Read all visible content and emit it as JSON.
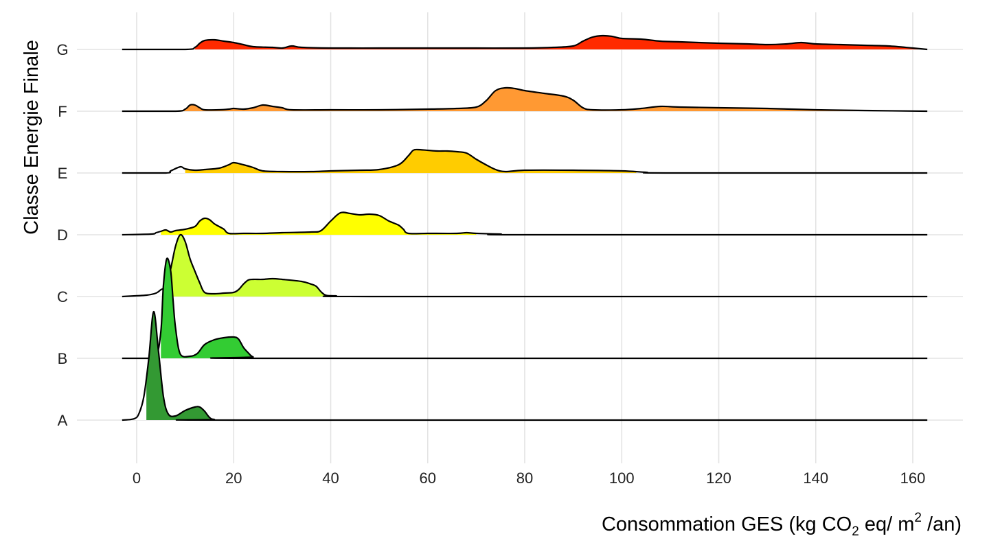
{
  "chart_data": {
    "type": "ridgeline",
    "title": "",
    "xlabel": {
      "prefix": "Consommation GES (kg CO",
      "sub": "2",
      "middle": " eq/ m",
      "sup": "2",
      "suffix": " /an)"
    },
    "ylabel": "Classe Energie Finale",
    "xlim": [
      -3,
      163
    ],
    "x_ticks": [
      0,
      20,
      40,
      60,
      80,
      100,
      120,
      140,
      160
    ],
    "grid": true,
    "categories": [
      "A",
      "B",
      "C",
      "D",
      "E",
      "F",
      "G"
    ],
    "series": [
      {
        "name": "A",
        "color": "#339933",
        "fill_range": [
          2,
          15
        ],
        "points": [
          [
            -3,
            0
          ],
          [
            -0.5,
            0.02
          ],
          [
            0.5,
            0.1
          ],
          [
            1.5,
            0.35
          ],
          [
            2.5,
            0.9
          ],
          [
            3.5,
            1.58
          ],
          [
            4.5,
            1.0
          ],
          [
            5.5,
            0.35
          ],
          [
            6.5,
            0.09
          ],
          [
            8,
            0.06
          ],
          [
            10,
            0.14
          ],
          [
            12,
            0.19
          ],
          [
            13,
            0.19
          ],
          [
            14,
            0.13
          ],
          [
            15,
            0.04
          ],
          [
            16,
            0.01
          ],
          [
            20,
            0
          ],
          [
            163,
            0
          ]
        ]
      },
      {
        "name": "B",
        "color": "#33cc33",
        "fill_range": [
          5,
          25
        ],
        "points": [
          [
            -3,
            0
          ],
          [
            2,
            0
          ],
          [
            4,
            0.02
          ],
          [
            5,
            0.4
          ],
          [
            5.5,
            1.05
          ],
          [
            6.2,
            1.45
          ],
          [
            7,
            1.28
          ],
          [
            7.5,
            0.85
          ],
          [
            8,
            0.45
          ],
          [
            9,
            0.06
          ],
          [
            11,
            0.03
          ],
          [
            12.5,
            0.07
          ],
          [
            14,
            0.2
          ],
          [
            16,
            0.27
          ],
          [
            18,
            0.3
          ],
          [
            20,
            0.31
          ],
          [
            21,
            0.28
          ],
          [
            22,
            0.16
          ],
          [
            23,
            0.08
          ],
          [
            24,
            0.02
          ],
          [
            26,
            0
          ],
          [
            163,
            0
          ]
        ]
      },
      {
        "name": "C",
        "color": "#ccff33",
        "fill_range": [
          6.5,
          41
        ],
        "points": [
          [
            -3,
            0
          ],
          [
            2,
            0.02
          ],
          [
            4,
            0.05
          ],
          [
            5,
            0.1
          ],
          [
            6,
            0.15
          ],
          [
            7,
            0.4
          ],
          [
            8,
            0.73
          ],
          [
            9,
            0.9
          ],
          [
            10,
            0.8
          ],
          [
            11,
            0.55
          ],
          [
            12,
            0.37
          ],
          [
            13,
            0.2
          ],
          [
            14,
            0.06
          ],
          [
            16,
            0.04
          ],
          [
            18,
            0.05
          ],
          [
            20,
            0.06
          ],
          [
            21,
            0.1
          ],
          [
            22,
            0.18
          ],
          [
            23,
            0.24
          ],
          [
            24,
            0.25
          ],
          [
            26,
            0.25
          ],
          [
            28,
            0.26
          ],
          [
            30,
            0.25
          ],
          [
            34,
            0.22
          ],
          [
            36,
            0.18
          ],
          [
            37,
            0.15
          ],
          [
            38,
            0.07
          ],
          [
            39,
            0.02
          ],
          [
            41,
            0.01
          ],
          [
            50,
            0
          ],
          [
            163,
            0
          ]
        ]
      },
      {
        "name": "D",
        "color": "#ffff00",
        "fill_range": [
          5,
          70
        ],
        "points": [
          [
            -3,
            0
          ],
          [
            3,
            0.01
          ],
          [
            4,
            0.03
          ],
          [
            5,
            0.05
          ],
          [
            6,
            0.07
          ],
          [
            7,
            0.04
          ],
          [
            8,
            0.06
          ],
          [
            10,
            0.08
          ],
          [
            12,
            0.12
          ],
          [
            13,
            0.2
          ],
          [
            14,
            0.24
          ],
          [
            15,
            0.22
          ],
          [
            16,
            0.16
          ],
          [
            17,
            0.12
          ],
          [
            18,
            0.08
          ],
          [
            19,
            0.02
          ],
          [
            22,
            0.02
          ],
          [
            26,
            0.02
          ],
          [
            30,
            0.03
          ],
          [
            36,
            0.04
          ],
          [
            38,
            0.06
          ],
          [
            40,
            0.2
          ],
          [
            42,
            0.32
          ],
          [
            44,
            0.31
          ],
          [
            46,
            0.29
          ],
          [
            48,
            0.3
          ],
          [
            50,
            0.28
          ],
          [
            52,
            0.2
          ],
          [
            54,
            0.14
          ],
          [
            55,
            0.08
          ],
          [
            56,
            0.02
          ],
          [
            60,
            0.02
          ],
          [
            66,
            0.02
          ],
          [
            68,
            0.03
          ],
          [
            70,
            0.02
          ],
          [
            75,
            0.01
          ],
          [
            80,
            0
          ],
          [
            163,
            0
          ]
        ]
      },
      {
        "name": "E",
        "color": "#ffcc00",
        "fill_range": [
          10,
          103
        ],
        "points": [
          [
            -3,
            0
          ],
          [
            6,
            0
          ],
          [
            7,
            0.03
          ],
          [
            9,
            0.09
          ],
          [
            10,
            0.06
          ],
          [
            12,
            0.04
          ],
          [
            14,
            0.05
          ],
          [
            17,
            0.07
          ],
          [
            19,
            0.12
          ],
          [
            20,
            0.15
          ],
          [
            22,
            0.12
          ],
          [
            24,
            0.08
          ],
          [
            26,
            0.03
          ],
          [
            30,
            0.02
          ],
          [
            36,
            0.02
          ],
          [
            40,
            0.03
          ],
          [
            46,
            0.04
          ],
          [
            50,
            0.05
          ],
          [
            54,
            0.12
          ],
          [
            56,
            0.25
          ],
          [
            57,
            0.33
          ],
          [
            58,
            0.34
          ],
          [
            60,
            0.33
          ],
          [
            62,
            0.32
          ],
          [
            64,
            0.32
          ],
          [
            66,
            0.31
          ],
          [
            68,
            0.29
          ],
          [
            70,
            0.2
          ],
          [
            72,
            0.12
          ],
          [
            74,
            0.05
          ],
          [
            76,
            0.02
          ],
          [
            80,
            0.04
          ],
          [
            90,
            0.04
          ],
          [
            100,
            0.03
          ],
          [
            105,
            0.01
          ],
          [
            110,
            0
          ],
          [
            163,
            0
          ]
        ]
      },
      {
        "name": "F",
        "color": "#ff9933",
        "fill_range": [
          9,
          163
        ],
        "points": [
          [
            -3,
            0
          ],
          [
            8,
            0
          ],
          [
            10,
            0.03
          ],
          [
            11,
            0.09
          ],
          [
            12,
            0.09
          ],
          [
            13,
            0.05
          ],
          [
            14,
            0.02
          ],
          [
            17,
            0.02
          ],
          [
            19,
            0.03
          ],
          [
            20,
            0.04
          ],
          [
            22,
            0.03
          ],
          [
            24,
            0.05
          ],
          [
            26,
            0.09
          ],
          [
            28,
            0.07
          ],
          [
            30,
            0.05
          ],
          [
            32,
            0.02
          ],
          [
            40,
            0.02
          ],
          [
            50,
            0.02
          ],
          [
            60,
            0.03
          ],
          [
            66,
            0.04
          ],
          [
            70,
            0.06
          ],
          [
            72,
            0.15
          ],
          [
            74,
            0.3
          ],
          [
            76,
            0.34
          ],
          [
            78,
            0.33
          ],
          [
            80,
            0.3
          ],
          [
            84,
            0.26
          ],
          [
            88,
            0.22
          ],
          [
            90,
            0.16
          ],
          [
            92,
            0.05
          ],
          [
            94,
            0.02
          ],
          [
            100,
            0.02
          ],
          [
            104,
            0.04
          ],
          [
            108,
            0.07
          ],
          [
            112,
            0.06
          ],
          [
            120,
            0.05
          ],
          [
            130,
            0.04
          ],
          [
            140,
            0.02
          ],
          [
            150,
            0.01
          ],
          [
            163,
            0
          ]
        ]
      },
      {
        "name": "G",
        "color": "#ff2a00",
        "fill_range": [
          12,
          163
        ],
        "points": [
          [
            -3,
            0
          ],
          [
            10,
            0
          ],
          [
            12,
            0.03
          ],
          [
            13,
            0.09
          ],
          [
            14,
            0.13
          ],
          [
            16,
            0.14
          ],
          [
            18,
            0.12
          ],
          [
            20,
            0.1
          ],
          [
            22,
            0.07
          ],
          [
            24,
            0.04
          ],
          [
            28,
            0.03
          ],
          [
            30,
            0.02
          ],
          [
            32,
            0.05
          ],
          [
            34,
            0.03
          ],
          [
            40,
            0.02
          ],
          [
            50,
            0.02
          ],
          [
            60,
            0.02
          ],
          [
            70,
            0.02
          ],
          [
            80,
            0.02
          ],
          [
            86,
            0.03
          ],
          [
            90,
            0.05
          ],
          [
            92,
            0.12
          ],
          [
            94,
            0.18
          ],
          [
            96,
            0.2
          ],
          [
            98,
            0.19
          ],
          [
            100,
            0.16
          ],
          [
            104,
            0.15
          ],
          [
            108,
            0.12
          ],
          [
            112,
            0.11
          ],
          [
            120,
            0.09
          ],
          [
            126,
            0.08
          ],
          [
            130,
            0.07
          ],
          [
            134,
            0.08
          ],
          [
            137,
            0.1
          ],
          [
            140,
            0.08
          ],
          [
            145,
            0.07
          ],
          [
            150,
            0.06
          ],
          [
            155,
            0.05
          ],
          [
            160,
            0.02
          ],
          [
            163,
            0
          ]
        ]
      }
    ]
  }
}
